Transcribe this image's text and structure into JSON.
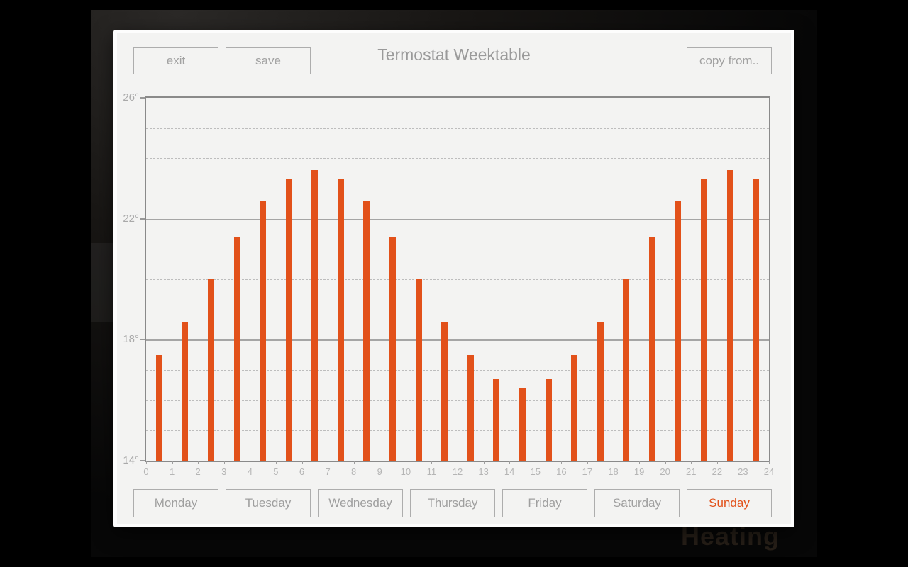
{
  "background": {
    "app_behind_text": "Heating"
  },
  "dialog": {
    "title": "Termostat Weektable",
    "toolbar": {
      "exit_label": "exit",
      "save_label": "save",
      "copy_from_label": "copy from.."
    },
    "days": [
      {
        "label": "Monday",
        "selected": false
      },
      {
        "label": "Tuesday",
        "selected": false
      },
      {
        "label": "Wednesday",
        "selected": false
      },
      {
        "label": "Thursday",
        "selected": false
      },
      {
        "label": "Friday",
        "selected": false
      },
      {
        "label": "Saturday",
        "selected": false
      },
      {
        "label": "Sunday",
        "selected": true
      }
    ]
  },
  "chart_data": {
    "type": "bar",
    "title": "",
    "categories": [
      0,
      1,
      2,
      3,
      4,
      5,
      6,
      7,
      8,
      9,
      10,
      11,
      12,
      13,
      14,
      15,
      16,
      17,
      18,
      19,
      20,
      21,
      22,
      23
    ],
    "values": [
      17.5,
      18.6,
      20.0,
      21.4,
      22.6,
      23.3,
      23.6,
      23.3,
      22.6,
      21.4,
      20.0,
      18.6,
      17.5,
      16.7,
      16.4,
      16.7,
      17.5,
      18.6,
      20.0,
      21.4,
      22.6,
      23.3,
      23.6,
      23.3
    ],
    "ylim": [
      14,
      26
    ],
    "y_major_ticks": [
      26,
      22,
      18,
      14
    ],
    "y_tick_suffix": "°",
    "y_minor_tick_step": 1,
    "x_ticks": [
      0,
      1,
      2,
      3,
      4,
      5,
      6,
      7,
      8,
      9,
      10,
      11,
      12,
      13,
      14,
      15,
      16,
      17,
      18,
      19,
      20,
      21,
      22,
      23,
      24
    ],
    "grid": true,
    "legend": false,
    "bar_color": "#e2511a"
  },
  "theme": {
    "accent": "#e2511a",
    "dialog_bg": "#f3f3f2",
    "button_border": "#adadad",
    "button_text": "#a2a2a2",
    "axis_border": "#8a8a8a",
    "tick_label": "#b5b5b5"
  }
}
